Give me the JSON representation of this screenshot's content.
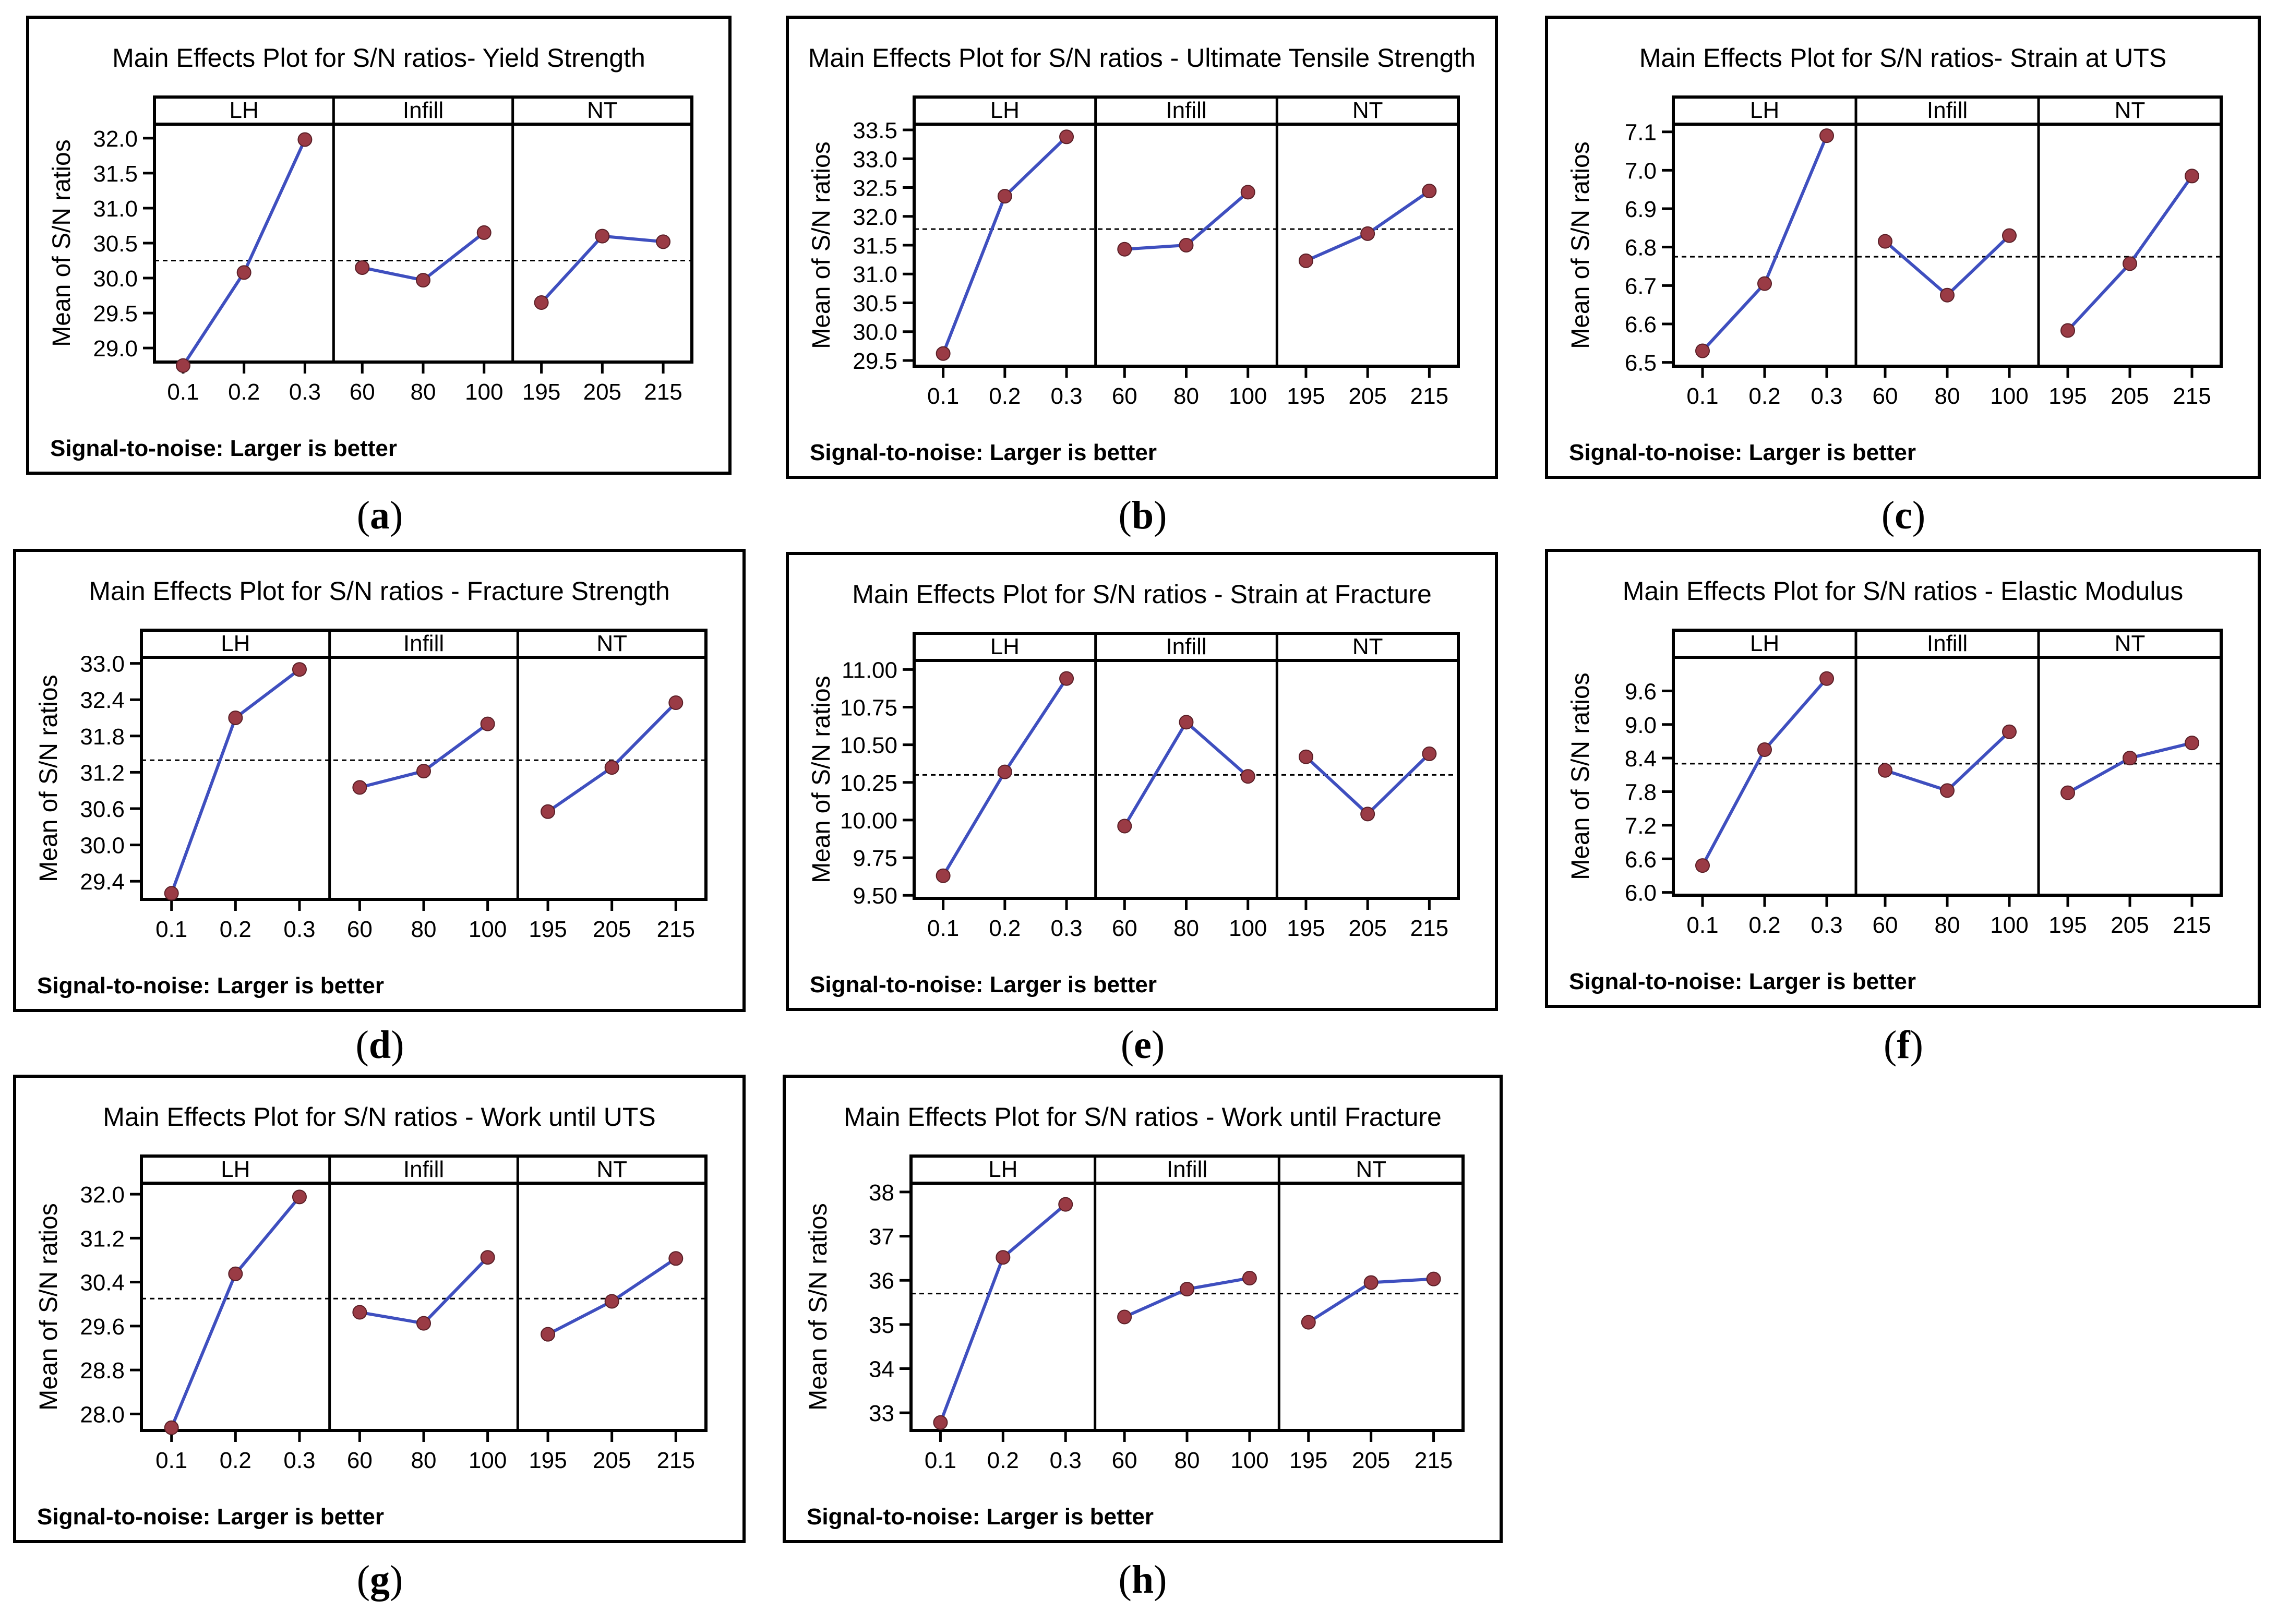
{
  "footer_note": "Signal-to-noise: Larger is better",
  "y_axis_label": "Mean of S/N ratios",
  "factor_labels": [
    "LH",
    "Infill",
    "NT"
  ],
  "factor_levels": [
    [
      "0.1",
      "0.2",
      "0.3"
    ],
    [
      "60",
      "80",
      "100"
    ],
    [
      "195",
      "205",
      "215"
    ]
  ],
  "colors": {
    "line": "#3f4fbf",
    "marker": "#9a3b45",
    "frame": "#000000"
  },
  "chart_data": [
    {
      "id": "a",
      "caption": "a",
      "type": "line",
      "title": "Main Effects Plot for S/N ratios- Yield Strength",
      "ylim": [
        28.8,
        32.2
      ],
      "yticks": [
        29.0,
        29.5,
        30.0,
        30.5,
        31.0,
        31.5,
        32.0
      ],
      "ytick_labels": [
        "29.0",
        "29.5",
        "30.0",
        "30.5",
        "31.0",
        "31.5",
        "32.0"
      ],
      "mean": 30.25,
      "series": [
        {
          "name": "LH",
          "values": [
            28.75,
            30.08,
            31.98
          ]
        },
        {
          "name": "Infill",
          "values": [
            30.15,
            29.97,
            30.65
          ]
        },
        {
          "name": "NT",
          "values": [
            29.65,
            30.6,
            30.52
          ]
        }
      ]
    },
    {
      "id": "b",
      "caption": "b",
      "type": "line",
      "title": "Main Effects Plot for S/N ratios - Ultimate Tensile Strength",
      "ylim": [
        29.4,
        33.6
      ],
      "yticks": [
        29.5,
        30.0,
        30.5,
        31.0,
        31.5,
        32.0,
        32.5,
        33.0,
        33.5
      ],
      "ytick_labels": [
        "29.5",
        "30.0",
        "30.5",
        "31.0",
        "31.5",
        "32.0",
        "32.5",
        "33.0",
        "33.5"
      ],
      "mean": 31.78,
      "series": [
        {
          "name": "LH",
          "values": [
            29.62,
            32.35,
            33.38
          ]
        },
        {
          "name": "Infill",
          "values": [
            31.43,
            31.5,
            32.42
          ]
        },
        {
          "name": "NT",
          "values": [
            31.23,
            31.7,
            32.44
          ]
        }
      ]
    },
    {
      "id": "c",
      "caption": "c",
      "type": "line",
      "title": "Main Effects Plot for S/N ratios- Strain at UTS",
      "ylim": [
        6.49,
        7.12
      ],
      "yticks": [
        6.5,
        6.6,
        6.7,
        6.8,
        6.9,
        7.0,
        7.1
      ],
      "ytick_labels": [
        "6.5",
        "6.6",
        "6.7",
        "6.8",
        "6.9",
        "7.0",
        "7.1"
      ],
      "mean": 6.775,
      "series": [
        {
          "name": "LH",
          "values": [
            6.53,
            6.705,
            7.09
          ]
        },
        {
          "name": "Infill",
          "values": [
            6.815,
            6.675,
            6.83
          ]
        },
        {
          "name": "NT",
          "values": [
            6.583,
            6.757,
            6.985
          ]
        }
      ]
    },
    {
      "id": "d",
      "caption": "d",
      "type": "line",
      "title": "Main Effects Plot for S/N ratios - Fracture Strength",
      "ylim": [
        29.1,
        33.1
      ],
      "yticks": [
        29.4,
        30.0,
        30.6,
        31.2,
        31.8,
        32.4,
        33.0
      ],
      "ytick_labels": [
        "29.4",
        "30.0",
        "30.6",
        "31.2",
        "31.8",
        "32.4",
        "33.0"
      ],
      "mean": 31.4,
      "series": [
        {
          "name": "LH",
          "values": [
            29.2,
            32.1,
            32.9
          ]
        },
        {
          "name": "Infill",
          "values": [
            30.95,
            31.22,
            32.0
          ]
        },
        {
          "name": "NT",
          "values": [
            30.55,
            31.28,
            32.35
          ]
        }
      ]
    },
    {
      "id": "e",
      "caption": "e",
      "type": "line",
      "title": "Main Effects Plot for S/N ratios - Strain at Fracture",
      "ylim": [
        9.48,
        11.06
      ],
      "yticks": [
        9.5,
        9.75,
        10.0,
        10.25,
        10.5,
        10.75,
        11.0
      ],
      "ytick_labels": [
        "9.50",
        "9.75",
        "10.00",
        "10.25",
        "10.50",
        "10.75",
        "11.00"
      ],
      "mean": 10.3,
      "series": [
        {
          "name": "LH",
          "values": [
            9.63,
            10.32,
            10.94
          ]
        },
        {
          "name": "Infill",
          "values": [
            9.96,
            10.65,
            10.29
          ]
        },
        {
          "name": "NT",
          "values": [
            10.42,
            10.04,
            10.44
          ]
        }
      ]
    },
    {
      "id": "f",
      "caption": "f",
      "type": "line",
      "title": "Main Effects Plot for S/N ratios - Elastic Modulus",
      "ylim": [
        5.95,
        10.2
      ],
      "yticks": [
        6.0,
        6.6,
        7.2,
        7.8,
        8.4,
        9.0,
        9.6
      ],
      "ytick_labels": [
        "6.0",
        "6.6",
        "7.2",
        "7.8",
        "8.4",
        "9.0",
        "9.6"
      ],
      "mean": 8.3,
      "series": [
        {
          "name": "LH",
          "values": [
            6.48,
            8.55,
            9.82
          ]
        },
        {
          "name": "Infill",
          "values": [
            8.18,
            7.82,
            8.87
          ]
        },
        {
          "name": "NT",
          "values": [
            7.78,
            8.4,
            8.67
          ]
        }
      ]
    },
    {
      "id": "g",
      "caption": "g",
      "type": "line",
      "title": "Main Effects Plot for S/N ratios - Work until UTS",
      "ylim": [
        27.7,
        32.2
      ],
      "yticks": [
        28.0,
        28.8,
        29.6,
        30.4,
        31.2,
        32.0
      ],
      "ytick_labels": [
        "28.0",
        "28.8",
        "29.6",
        "30.4",
        "31.2",
        "32.0"
      ],
      "mean": 30.1,
      "series": [
        {
          "name": "LH",
          "values": [
            27.75,
            30.55,
            31.95
          ]
        },
        {
          "name": "Infill",
          "values": [
            29.85,
            29.65,
            30.85
          ]
        },
        {
          "name": "NT",
          "values": [
            29.45,
            30.05,
            30.83
          ]
        }
      ]
    },
    {
      "id": "h",
      "caption": "h",
      "type": "line",
      "title": "Main Effects Plot for S/N ratios - Work until Fracture",
      "ylim": [
        32.6,
        38.2
      ],
      "yticks": [
        33,
        34,
        35,
        36,
        37,
        38
      ],
      "ytick_labels": [
        "33",
        "34",
        "35",
        "36",
        "37",
        "38"
      ],
      "mean": 35.7,
      "series": [
        {
          "name": "LH",
          "values": [
            32.78,
            36.52,
            37.72
          ]
        },
        {
          "name": "Infill",
          "values": [
            35.17,
            35.8,
            36.05
          ]
        },
        {
          "name": "NT",
          "values": [
            35.05,
            35.95,
            36.03
          ]
        }
      ]
    }
  ]
}
